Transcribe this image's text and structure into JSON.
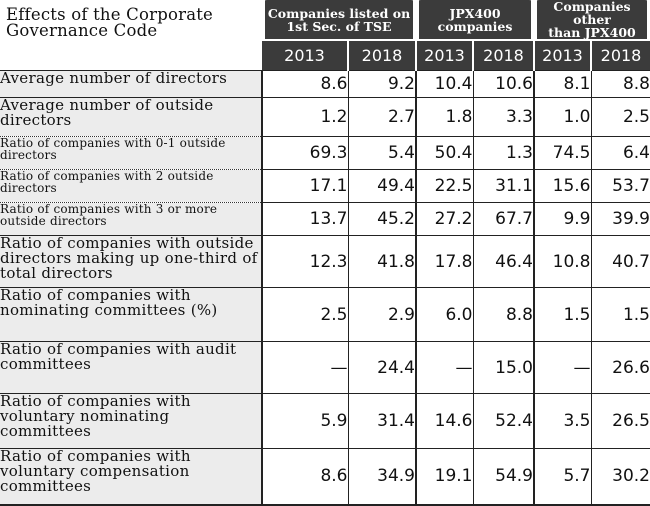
{
  "title": "Effects of the Corporate Governance Code",
  "groups": [
    {
      "line1": "Companies listed on",
      "line2": "1st Sec. of TSE"
    },
    {
      "line1": "JPX400",
      "line2": "companies"
    },
    {
      "line1": "Companies other",
      "line2": "than JPX400"
    }
  ],
  "years": [
    "2013",
    "2018",
    "2013",
    "2018",
    "2013",
    "2018"
  ],
  "rows": [
    {
      "label": "Average number of directors",
      "values": [
        "8.6",
        "9.2",
        "10.4",
        "10.6",
        "8.1",
        "8.8"
      ]
    },
    {
      "label": "Average number of outside directors",
      "values": [
        "1.2",
        "2.7",
        "1.8",
        "3.3",
        "1.0",
        "2.5"
      ]
    },
    {
      "label": "Ratio of companies with 0-1 outside directors",
      "values": [
        "69.3",
        "5.4",
        "50.4",
        "1.3",
        "74.5",
        "6.4"
      ]
    },
    {
      "label": "Ratio of companies with 2 outside directors",
      "values": [
        "17.1",
        "49.4",
        "22.5",
        "31.1",
        "15.6",
        "53.7"
      ]
    },
    {
      "label": "Ratio of companies with 3 or more outside directors",
      "values": [
        "13.7",
        "45.2",
        "27.2",
        "67.7",
        "9.9",
        "39.9"
      ]
    },
    {
      "label": "Ratio of companies with outside directors making up one-third of total directors",
      "values": [
        "12.3",
        "41.8",
        "17.8",
        "46.4",
        "10.8",
        "40.7"
      ]
    },
    {
      "label": "Ratio of companies with nominating committees (%)",
      "values": [
        "2.5",
        "2.9",
        "6.0",
        "8.8",
        "1.5",
        "1.5"
      ]
    },
    {
      "label": "Ratio of companies with audit committees",
      "values": [
        "—",
        "24.4",
        "—",
        "15.0",
        "—",
        "26.6"
      ]
    },
    {
      "label": "Ratio of companies with voluntary nominating committees",
      "values": [
        "5.9",
        "31.4",
        "14.6",
        "52.4",
        "3.5",
        "26.5"
      ]
    },
    {
      "label": "Ratio of companies with voluntary compensation committees",
      "values": [
        "8.6",
        "34.9",
        "19.1",
        "54.9",
        "5.7",
        "30.2"
      ]
    }
  ]
}
